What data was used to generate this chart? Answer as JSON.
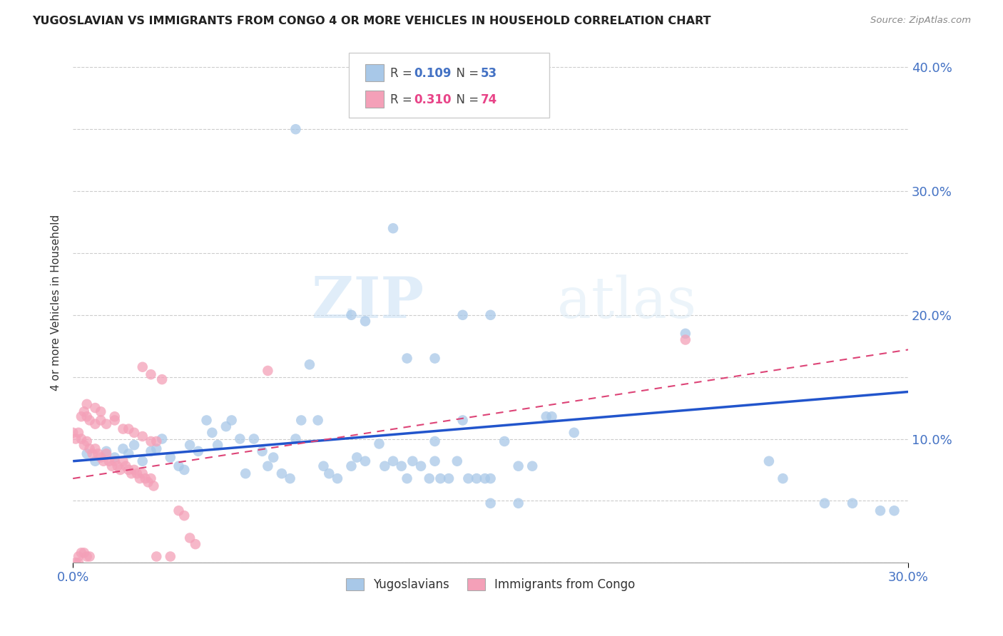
{
  "title": "YUGOSLAVIAN VS IMMIGRANTS FROM CONGO 4 OR MORE VEHICLES IN HOUSEHOLD CORRELATION CHART",
  "source": "Source: ZipAtlas.com",
  "ylabel": "4 or more Vehicles in Household",
  "xlim": [
    0.0,
    0.3
  ],
  "ylim": [
    0.0,
    0.42
  ],
  "xticks": [
    0.0,
    0.3
  ],
  "xticklabels": [
    "0.0%",
    "30.0%"
  ],
  "yticks": [
    0.0,
    0.05,
    0.1,
    0.15,
    0.2,
    0.25,
    0.3,
    0.35,
    0.4
  ],
  "yticklabels_right": [
    "",
    "",
    "10.0%",
    "",
    "20.0%",
    "",
    "30.0%",
    "",
    "40.0%"
  ],
  "watermark": "ZIPatlas",
  "blue_color": "#a8c8e8",
  "pink_color": "#f4a0b8",
  "blue_line_color": "#2255cc",
  "pink_line_color": "#dd4477",
  "grid_color": "#cccccc",
  "background_color": "#ffffff",
  "blue_scatter": [
    [
      0.005,
      0.088
    ],
    [
      0.008,
      0.082
    ],
    [
      0.012,
      0.09
    ],
    [
      0.015,
      0.085
    ],
    [
      0.018,
      0.092
    ],
    [
      0.02,
      0.088
    ],
    [
      0.022,
      0.095
    ],
    [
      0.025,
      0.082
    ],
    [
      0.028,
      0.09
    ],
    [
      0.03,
      0.092
    ],
    [
      0.032,
      0.1
    ],
    [
      0.035,
      0.085
    ],
    [
      0.038,
      0.078
    ],
    [
      0.04,
      0.075
    ],
    [
      0.042,
      0.095
    ],
    [
      0.045,
      0.09
    ],
    [
      0.048,
      0.115
    ],
    [
      0.05,
      0.105
    ],
    [
      0.052,
      0.095
    ],
    [
      0.055,
      0.11
    ],
    [
      0.057,
      0.115
    ],
    [
      0.06,
      0.1
    ],
    [
      0.062,
      0.072
    ],
    [
      0.065,
      0.1
    ],
    [
      0.068,
      0.09
    ],
    [
      0.07,
      0.078
    ],
    [
      0.072,
      0.085
    ],
    [
      0.075,
      0.072
    ],
    [
      0.078,
      0.068
    ],
    [
      0.08,
      0.1
    ],
    [
      0.082,
      0.115
    ],
    [
      0.085,
      0.16
    ],
    [
      0.088,
      0.115
    ],
    [
      0.09,
      0.078
    ],
    [
      0.092,
      0.072
    ],
    [
      0.095,
      0.068
    ],
    [
      0.1,
      0.078
    ],
    [
      0.102,
      0.085
    ],
    [
      0.105,
      0.082
    ],
    [
      0.11,
      0.096
    ],
    [
      0.112,
      0.078
    ],
    [
      0.115,
      0.082
    ],
    [
      0.118,
      0.078
    ],
    [
      0.12,
      0.068
    ],
    [
      0.122,
      0.082
    ],
    [
      0.125,
      0.078
    ],
    [
      0.128,
      0.068
    ],
    [
      0.13,
      0.082
    ],
    [
      0.132,
      0.068
    ],
    [
      0.135,
      0.068
    ],
    [
      0.138,
      0.082
    ],
    [
      0.14,
      0.115
    ],
    [
      0.142,
      0.068
    ],
    [
      0.145,
      0.068
    ],
    [
      0.148,
      0.068
    ],
    [
      0.15,
      0.068
    ],
    [
      0.155,
      0.098
    ],
    [
      0.1,
      0.2
    ],
    [
      0.105,
      0.195
    ],
    [
      0.115,
      0.27
    ],
    [
      0.12,
      0.165
    ],
    [
      0.13,
      0.165
    ],
    [
      0.14,
      0.2
    ],
    [
      0.15,
      0.2
    ],
    [
      0.08,
      0.35
    ],
    [
      0.15,
      0.048
    ],
    [
      0.16,
      0.048
    ],
    [
      0.13,
      0.098
    ],
    [
      0.16,
      0.078
    ],
    [
      0.165,
      0.078
    ],
    [
      0.17,
      0.118
    ],
    [
      0.172,
      0.118
    ],
    [
      0.18,
      0.105
    ],
    [
      0.22,
      0.185
    ],
    [
      0.25,
      0.082
    ],
    [
      0.255,
      0.068
    ],
    [
      0.27,
      0.048
    ],
    [
      0.28,
      0.048
    ],
    [
      0.29,
      0.042
    ],
    [
      0.295,
      0.042
    ]
  ],
  "pink_scatter": [
    [
      0.002,
      0.105
    ],
    [
      0.003,
      0.1
    ],
    [
      0.004,
      0.095
    ],
    [
      0.005,
      0.098
    ],
    [
      0.006,
      0.092
    ],
    [
      0.007,
      0.088
    ],
    [
      0.008,
      0.092
    ],
    [
      0.009,
      0.088
    ],
    [
      0.01,
      0.085
    ],
    [
      0.011,
      0.082
    ],
    [
      0.012,
      0.088
    ],
    [
      0.013,
      0.082
    ],
    [
      0.014,
      0.078
    ],
    [
      0.015,
      0.082
    ],
    [
      0.016,
      0.078
    ],
    [
      0.017,
      0.075
    ],
    [
      0.018,
      0.082
    ],
    [
      0.019,
      0.078
    ],
    [
      0.02,
      0.075
    ],
    [
      0.021,
      0.072
    ],
    [
      0.022,
      0.075
    ],
    [
      0.023,
      0.072
    ],
    [
      0.024,
      0.068
    ],
    [
      0.025,
      0.072
    ],
    [
      0.026,
      0.068
    ],
    [
      0.027,
      0.065
    ],
    [
      0.028,
      0.068
    ],
    [
      0.029,
      0.062
    ],
    [
      0.003,
      0.118
    ],
    [
      0.004,
      0.122
    ],
    [
      0.005,
      0.118
    ],
    [
      0.006,
      0.115
    ],
    [
      0.008,
      0.112
    ],
    [
      0.01,
      0.115
    ],
    [
      0.012,
      0.112
    ],
    [
      0.015,
      0.115
    ],
    [
      0.018,
      0.108
    ],
    [
      0.02,
      0.108
    ],
    [
      0.022,
      0.105
    ],
    [
      0.025,
      0.102
    ],
    [
      0.028,
      0.098
    ],
    [
      0.03,
      0.098
    ],
    [
      0.005,
      0.128
    ],
    [
      0.008,
      0.125
    ],
    [
      0.01,
      0.122
    ],
    [
      0.015,
      0.118
    ],
    [
      0.025,
      0.158
    ],
    [
      0.028,
      0.152
    ],
    [
      0.032,
      0.148
    ],
    [
      0.0,
      0.105
    ],
    [
      0.001,
      0.1
    ],
    [
      0.002,
      0.005
    ],
    [
      0.003,
      0.008
    ],
    [
      0.004,
      0.008
    ],
    [
      0.005,
      0.005
    ],
    [
      0.006,
      0.005
    ],
    [
      0.001,
      0.0
    ],
    [
      0.002,
      0.0
    ],
    [
      0.03,
      0.005
    ],
    [
      0.035,
      0.005
    ],
    [
      0.038,
      0.042
    ],
    [
      0.04,
      0.038
    ],
    [
      0.042,
      0.02
    ],
    [
      0.044,
      0.015
    ],
    [
      0.07,
      0.155
    ],
    [
      0.22,
      0.18
    ]
  ],
  "blue_line": {
    "x0": 0.0,
    "x1": 0.3,
    "y0": 0.082,
    "y1": 0.138
  },
  "pink_line": {
    "x0": 0.0,
    "x1": 0.3,
    "y0": 0.068,
    "y1": 0.172
  }
}
